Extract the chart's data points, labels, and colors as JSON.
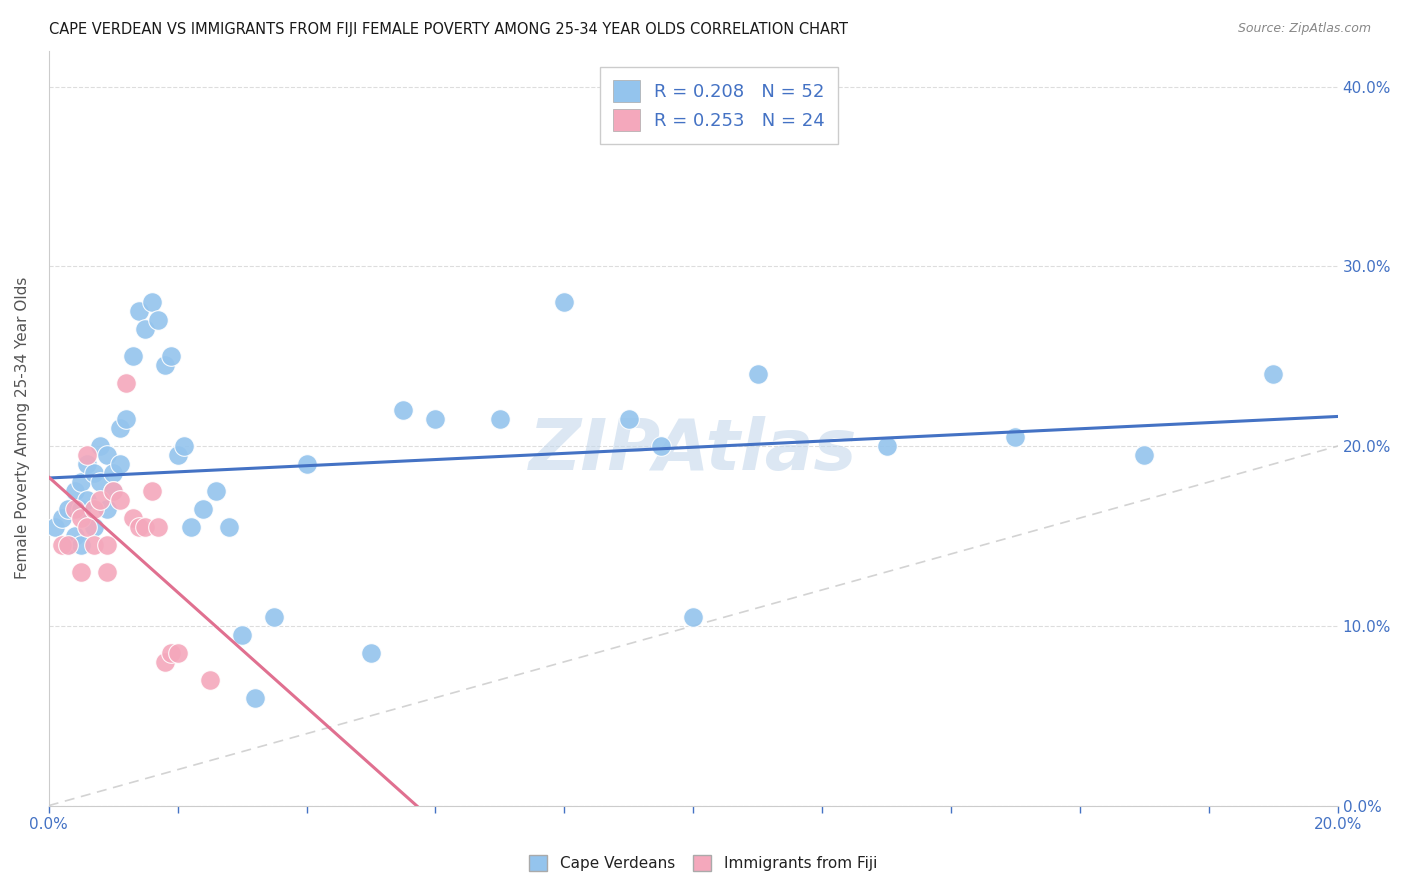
{
  "title": "CAPE VERDEAN VS IMMIGRANTS FROM FIJI FEMALE POVERTY AMONG 25-34 YEAR OLDS CORRELATION CHART",
  "source": "Source: ZipAtlas.com",
  "ylabel_label": "Female Poverty Among 25-34 Year Olds",
  "xlim": [
    0.0,
    0.2
  ],
  "ylim": [
    0.0,
    0.42
  ],
  "x_ticks": [
    0.0,
    0.02,
    0.04,
    0.06,
    0.08,
    0.1,
    0.12,
    0.14,
    0.16,
    0.18,
    0.2
  ],
  "y_ticks": [
    0.0,
    0.1,
    0.2,
    0.3,
    0.4
  ],
  "cape_verdean_color": "#94c4ed",
  "fiji_color": "#f4a8bc",
  "trend_cape_color": "#4472c4",
  "trend_fiji_color": "#e07090",
  "diagonal_color": "#c8c8c8",
  "watermark_color": "#c5d8ec",
  "R_cape": 0.208,
  "N_cape": 52,
  "R_fiji": 0.253,
  "N_fiji": 24,
  "cape_verdean_x": [
    0.001,
    0.002,
    0.003,
    0.003,
    0.004,
    0.004,
    0.005,
    0.005,
    0.005,
    0.006,
    0.006,
    0.007,
    0.007,
    0.008,
    0.008,
    0.009,
    0.009,
    0.01,
    0.01,
    0.011,
    0.011,
    0.012,
    0.013,
    0.014,
    0.015,
    0.016,
    0.017,
    0.018,
    0.019,
    0.02,
    0.021,
    0.022,
    0.024,
    0.026,
    0.028,
    0.03,
    0.032,
    0.035,
    0.04,
    0.05,
    0.055,
    0.06,
    0.07,
    0.08,
    0.09,
    0.095,
    0.1,
    0.11,
    0.13,
    0.15,
    0.17,
    0.19
  ],
  "cape_verdean_y": [
    0.155,
    0.16,
    0.165,
    0.145,
    0.175,
    0.15,
    0.18,
    0.165,
    0.145,
    0.19,
    0.17,
    0.185,
    0.155,
    0.2,
    0.18,
    0.195,
    0.165,
    0.185,
    0.175,
    0.21,
    0.19,
    0.215,
    0.25,
    0.275,
    0.265,
    0.28,
    0.27,
    0.245,
    0.25,
    0.195,
    0.2,
    0.155,
    0.165,
    0.175,
    0.155,
    0.095,
    0.06,
    0.105,
    0.19,
    0.085,
    0.22,
    0.215,
    0.215,
    0.28,
    0.215,
    0.2,
    0.105,
    0.24,
    0.2,
    0.205,
    0.195,
    0.24
  ],
  "fiji_x": [
    0.002,
    0.003,
    0.004,
    0.005,
    0.005,
    0.006,
    0.006,
    0.007,
    0.007,
    0.008,
    0.009,
    0.009,
    0.01,
    0.011,
    0.012,
    0.013,
    0.014,
    0.015,
    0.016,
    0.017,
    0.018,
    0.019,
    0.02,
    0.025
  ],
  "fiji_y": [
    0.145,
    0.145,
    0.165,
    0.16,
    0.13,
    0.195,
    0.155,
    0.165,
    0.145,
    0.17,
    0.145,
    0.13,
    0.175,
    0.17,
    0.235,
    0.16,
    0.155,
    0.155,
    0.175,
    0.155,
    0.08,
    0.085,
    0.085,
    0.07
  ],
  "background_color": "#ffffff",
  "grid_color": "#d5d5d5"
}
